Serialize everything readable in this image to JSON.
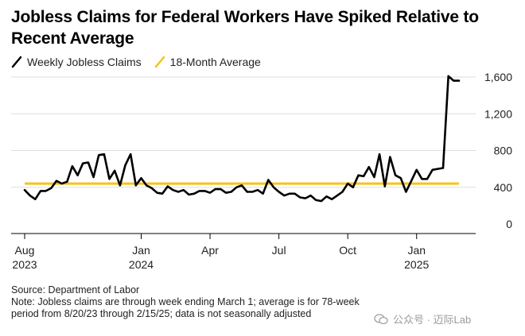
{
  "chart_data": {
    "type": "line",
    "title": "Jobless Claims for Federal Workers Have Spiked Relative to Recent Average",
    "legend": [
      "Weekly Jobless Claims",
      "18-Month Average"
    ],
    "legend_placement": "top-left",
    "grid": "horizontal",
    "ylim": [
      0,
      1600
    ],
    "y_ticks": [
      "0",
      "400",
      "800",
      "1,200",
      "1,600"
    ],
    "y_tick_values": [
      0,
      400,
      800,
      1200,
      1600
    ],
    "x_ticks": [
      {
        "label": "Aug",
        "sub": "2023",
        "date": "2023-08-05"
      },
      {
        "label": "Jan",
        "sub": "2024",
        "date": "2024-01-06"
      },
      {
        "label": "Apr",
        "sub": "",
        "date": "2024-04-06"
      },
      {
        "label": "Jul",
        "sub": "",
        "date": "2024-07-06"
      },
      {
        "label": "Oct",
        "sub": "",
        "date": "2024-10-05"
      },
      {
        "label": "Jan",
        "sub": "2025",
        "date": "2025-01-04"
      }
    ],
    "average": {
      "name": "18-Month Average",
      "value": 440,
      "start": "2023-08-05",
      "end": "2025-03-01"
    },
    "series": [
      {
        "name": "Weekly Jobless Claims",
        "x": [
          "2023-08-05",
          "2023-08-12",
          "2023-08-19",
          "2023-08-26",
          "2023-09-02",
          "2023-09-09",
          "2023-09-16",
          "2023-09-23",
          "2023-09-30",
          "2023-10-07",
          "2023-10-14",
          "2023-10-21",
          "2023-10-28",
          "2023-11-04",
          "2023-11-11",
          "2023-11-18",
          "2023-11-25",
          "2023-12-02",
          "2023-12-09",
          "2023-12-16",
          "2023-12-23",
          "2023-12-30",
          "2024-01-06",
          "2024-01-13",
          "2024-01-20",
          "2024-01-27",
          "2024-02-03",
          "2024-02-10",
          "2024-02-17",
          "2024-02-24",
          "2024-03-02",
          "2024-03-09",
          "2024-03-16",
          "2024-03-23",
          "2024-03-30",
          "2024-04-06",
          "2024-04-13",
          "2024-04-20",
          "2024-04-27",
          "2024-05-04",
          "2024-05-11",
          "2024-05-18",
          "2024-05-25",
          "2024-06-01",
          "2024-06-08",
          "2024-06-15",
          "2024-06-22",
          "2024-06-29",
          "2024-07-06",
          "2024-07-13",
          "2024-07-20",
          "2024-07-27",
          "2024-08-03",
          "2024-08-10",
          "2024-08-17",
          "2024-08-24",
          "2024-08-31",
          "2024-09-07",
          "2024-09-14",
          "2024-09-21",
          "2024-09-28",
          "2024-10-05",
          "2024-10-12",
          "2024-10-19",
          "2024-10-26",
          "2024-11-02",
          "2024-11-09",
          "2024-11-16",
          "2024-11-23",
          "2024-11-30",
          "2024-12-07",
          "2024-12-14",
          "2024-12-21",
          "2024-12-28",
          "2025-01-04",
          "2025-01-11",
          "2025-01-18",
          "2025-01-25",
          "2025-02-01",
          "2025-02-08",
          "2025-02-15",
          "2025-02-22",
          "2025-03-01"
        ],
        "values": [
          370,
          310,
          270,
          360,
          360,
          390,
          470,
          440,
          460,
          630,
          530,
          660,
          670,
          510,
          750,
          760,
          490,
          580,
          420,
          640,
          760,
          420,
          500,
          420,
          390,
          340,
          330,
          410,
          370,
          350,
          370,
          320,
          330,
          360,
          360,
          340,
          380,
          380,
          340,
          350,
          400,
          420,
          350,
          350,
          370,
          330,
          480,
          400,
          350,
          310,
          330,
          330,
          290,
          280,
          310,
          260,
          250,
          300,
          270,
          310,
          350,
          440,
          400,
          530,
          520,
          620,
          510,
          760,
          410,
          730,
          530,
          500,
          350,
          470,
          590,
          490,
          490,
          590,
          600,
          610,
          1610,
          1560,
          1560
        ]
      }
    ]
  },
  "source": "Source: Department of Labor",
  "note": "Note: Jobless claims are through week ending March 1; average is for 78-week period from 8/20/23 through 2/15/25; data is not seasonally adjusted",
  "watermark": "公众号 · 迈际Lab",
  "colors": {
    "line": "#000000",
    "average": "#f4c41a",
    "grid": "#dedede",
    "axis": "#000000"
  }
}
